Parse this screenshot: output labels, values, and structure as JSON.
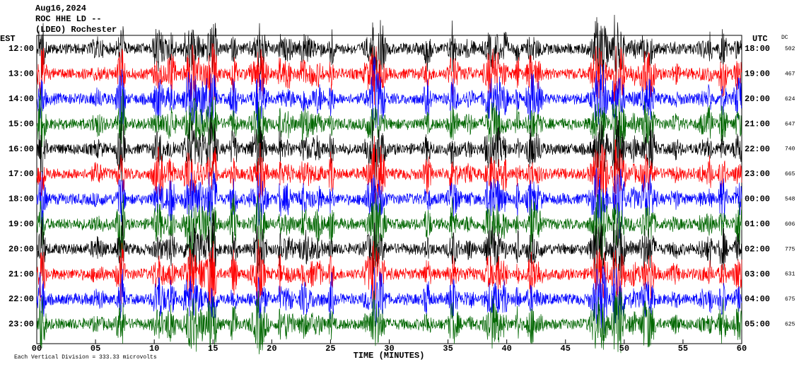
{
  "header": {
    "lines": [
      "Aug16,2024",
      "ROC HHE LD --",
      "(LDEO) Rochester"
    ]
  },
  "left_axis_label": "EST",
  "right_axis_label": "UTC",
  "dc_label": "DC",
  "rows": [
    {
      "est": "12:00",
      "utc": "18:00",
      "dc": "502"
    },
    {
      "est": "13:00",
      "utc": "19:00",
      "dc": "467"
    },
    {
      "est": "14:00",
      "utc": "20:00",
      "dc": "624"
    },
    {
      "est": "15:00",
      "utc": "21:00",
      "dc": "647"
    },
    {
      "est": "16:00",
      "utc": "22:00",
      "dc": "740"
    },
    {
      "est": "17:00",
      "utc": "23:00",
      "dc": "665"
    },
    {
      "est": "18:00",
      "utc": "00:00",
      "dc": "548"
    },
    {
      "est": "19:00",
      "utc": "01:00",
      "dc": "606"
    },
    {
      "est": "20:00",
      "utc": "02:00",
      "dc": "775"
    },
    {
      "est": "21:00",
      "utc": "03:00",
      "dc": "631"
    },
    {
      "est": "22:00",
      "utc": "04:00",
      "dc": "675"
    },
    {
      "est": "23:00",
      "utc": "05:00",
      "dc": "625"
    }
  ],
  "trace_colors": [
    "#000000",
    "#ff0000",
    "#0000ff",
    "#006600"
  ],
  "x_ticks": [
    "00",
    "05",
    "10",
    "15",
    "20",
    "25",
    "30",
    "35",
    "40",
    "45",
    "50",
    "55",
    "60"
  ],
  "x_label": "TIME (MINUTES)",
  "footer": "Each Vertical Division =  333.33 microvolts"
}
